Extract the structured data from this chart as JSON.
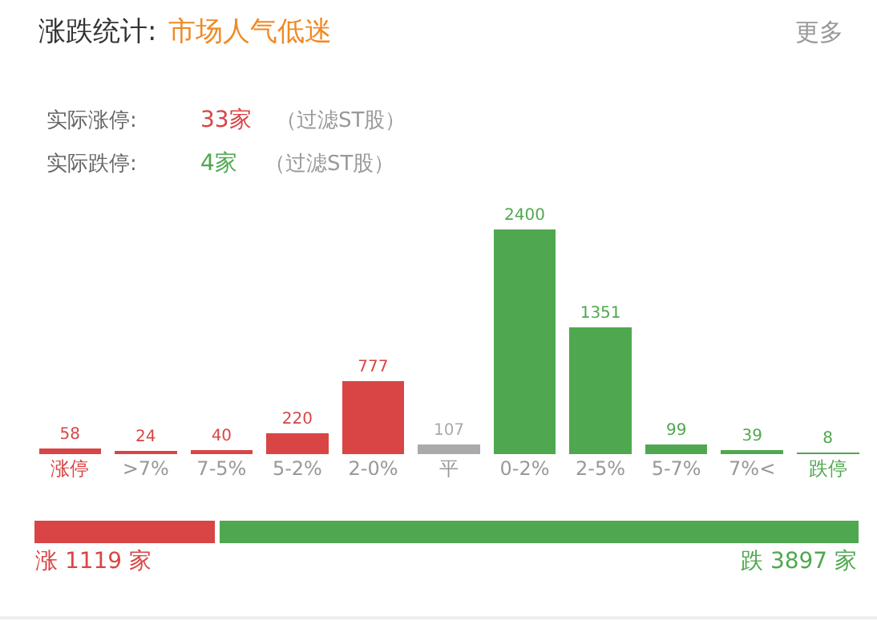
{
  "chart_data": [
    {
      "type": "bar",
      "title": "涨跌统计:",
      "subtitle": "市场人气低迷",
      "annotations": [
        "更多",
        "实际涨停:",
        "33家",
        "（过滤ST股）",
        "实际跌停:",
        "4家",
        "（过滤ST股）"
      ],
      "categories": [
        "涨停",
        ">7%",
        "7-5%",
        "5-2%",
        "2-0%",
        "平",
        "0-2%",
        "2-5%",
        "5-7%",
        "7%<",
        "跌停"
      ],
      "values": [
        58,
        24,
        40,
        220,
        777,
        107,
        2400,
        1351,
        99,
        39,
        8
      ],
      "colors": [
        "#d94545",
        "#d94545",
        "#d94545",
        "#d94545",
        "#d94545",
        "#aaaaaa",
        "#4fa84f",
        "#4fa84f",
        "#4fa84f",
        "#4fa84f",
        "#4fa84f"
      ],
      "data_labels": true,
      "tick_labels": "x"
    },
    {
      "type": "bar",
      "orientation": "horizontal",
      "stacked": true,
      "categories": [
        null
      ],
      "tick_labels": false,
      "series": [
        {
          "color": "#d94545",
          "values": [
            1119
          ],
          "value_labels": [
            "涨 1119 家"
          ]
        },
        {
          "color": "#4fa84f",
          "values": [
            3897
          ],
          "value_labels": [
            "跌 3897 家"
          ]
        }
      ]
    }
  ]
}
